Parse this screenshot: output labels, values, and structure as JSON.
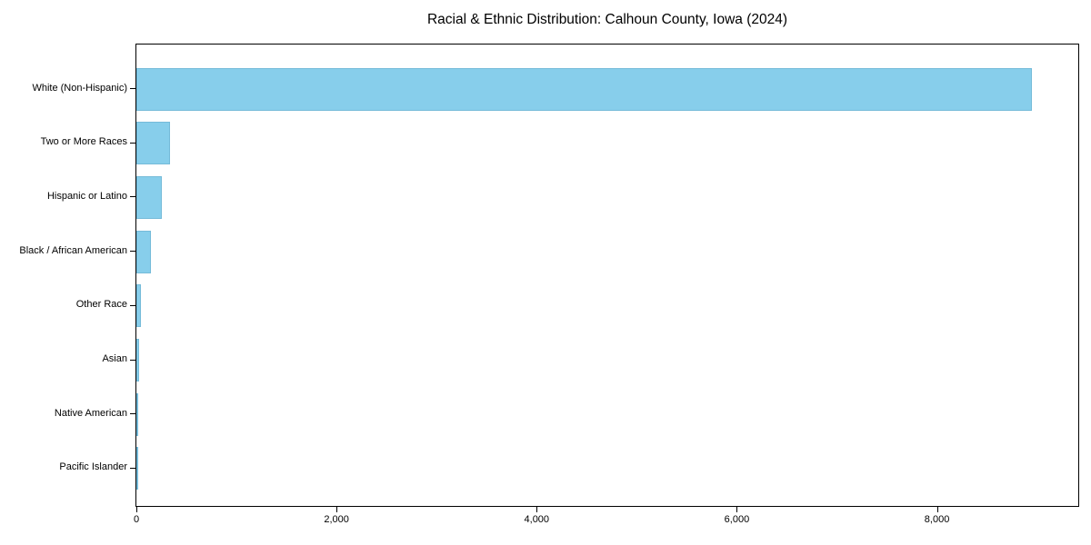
{
  "chart_data": {
    "type": "bar",
    "orientation": "horizontal",
    "title": "Racial & Ethnic Distribution: Calhoun County, Iowa (2024)",
    "xlabel": "",
    "ylabel": "",
    "categories": [
      "White (Non-Hispanic)",
      "Two or More Races",
      "Hispanic or Latino",
      "Black / African American",
      "Other Race",
      "Asian",
      "Native American",
      "Pacific Islander"
    ],
    "values": [
      8950,
      340,
      255,
      145,
      45,
      25,
      10,
      2
    ],
    "xlim": [
      0,
      9412
    ],
    "x_ticks": [
      0,
      2000,
      4000,
      6000,
      8000
    ],
    "x_tick_labels": [
      "0",
      "2,000",
      "4,000",
      "6,000",
      "8,000"
    ],
    "bar_color": "#87CEEB",
    "grid": false,
    "legend": null
  }
}
